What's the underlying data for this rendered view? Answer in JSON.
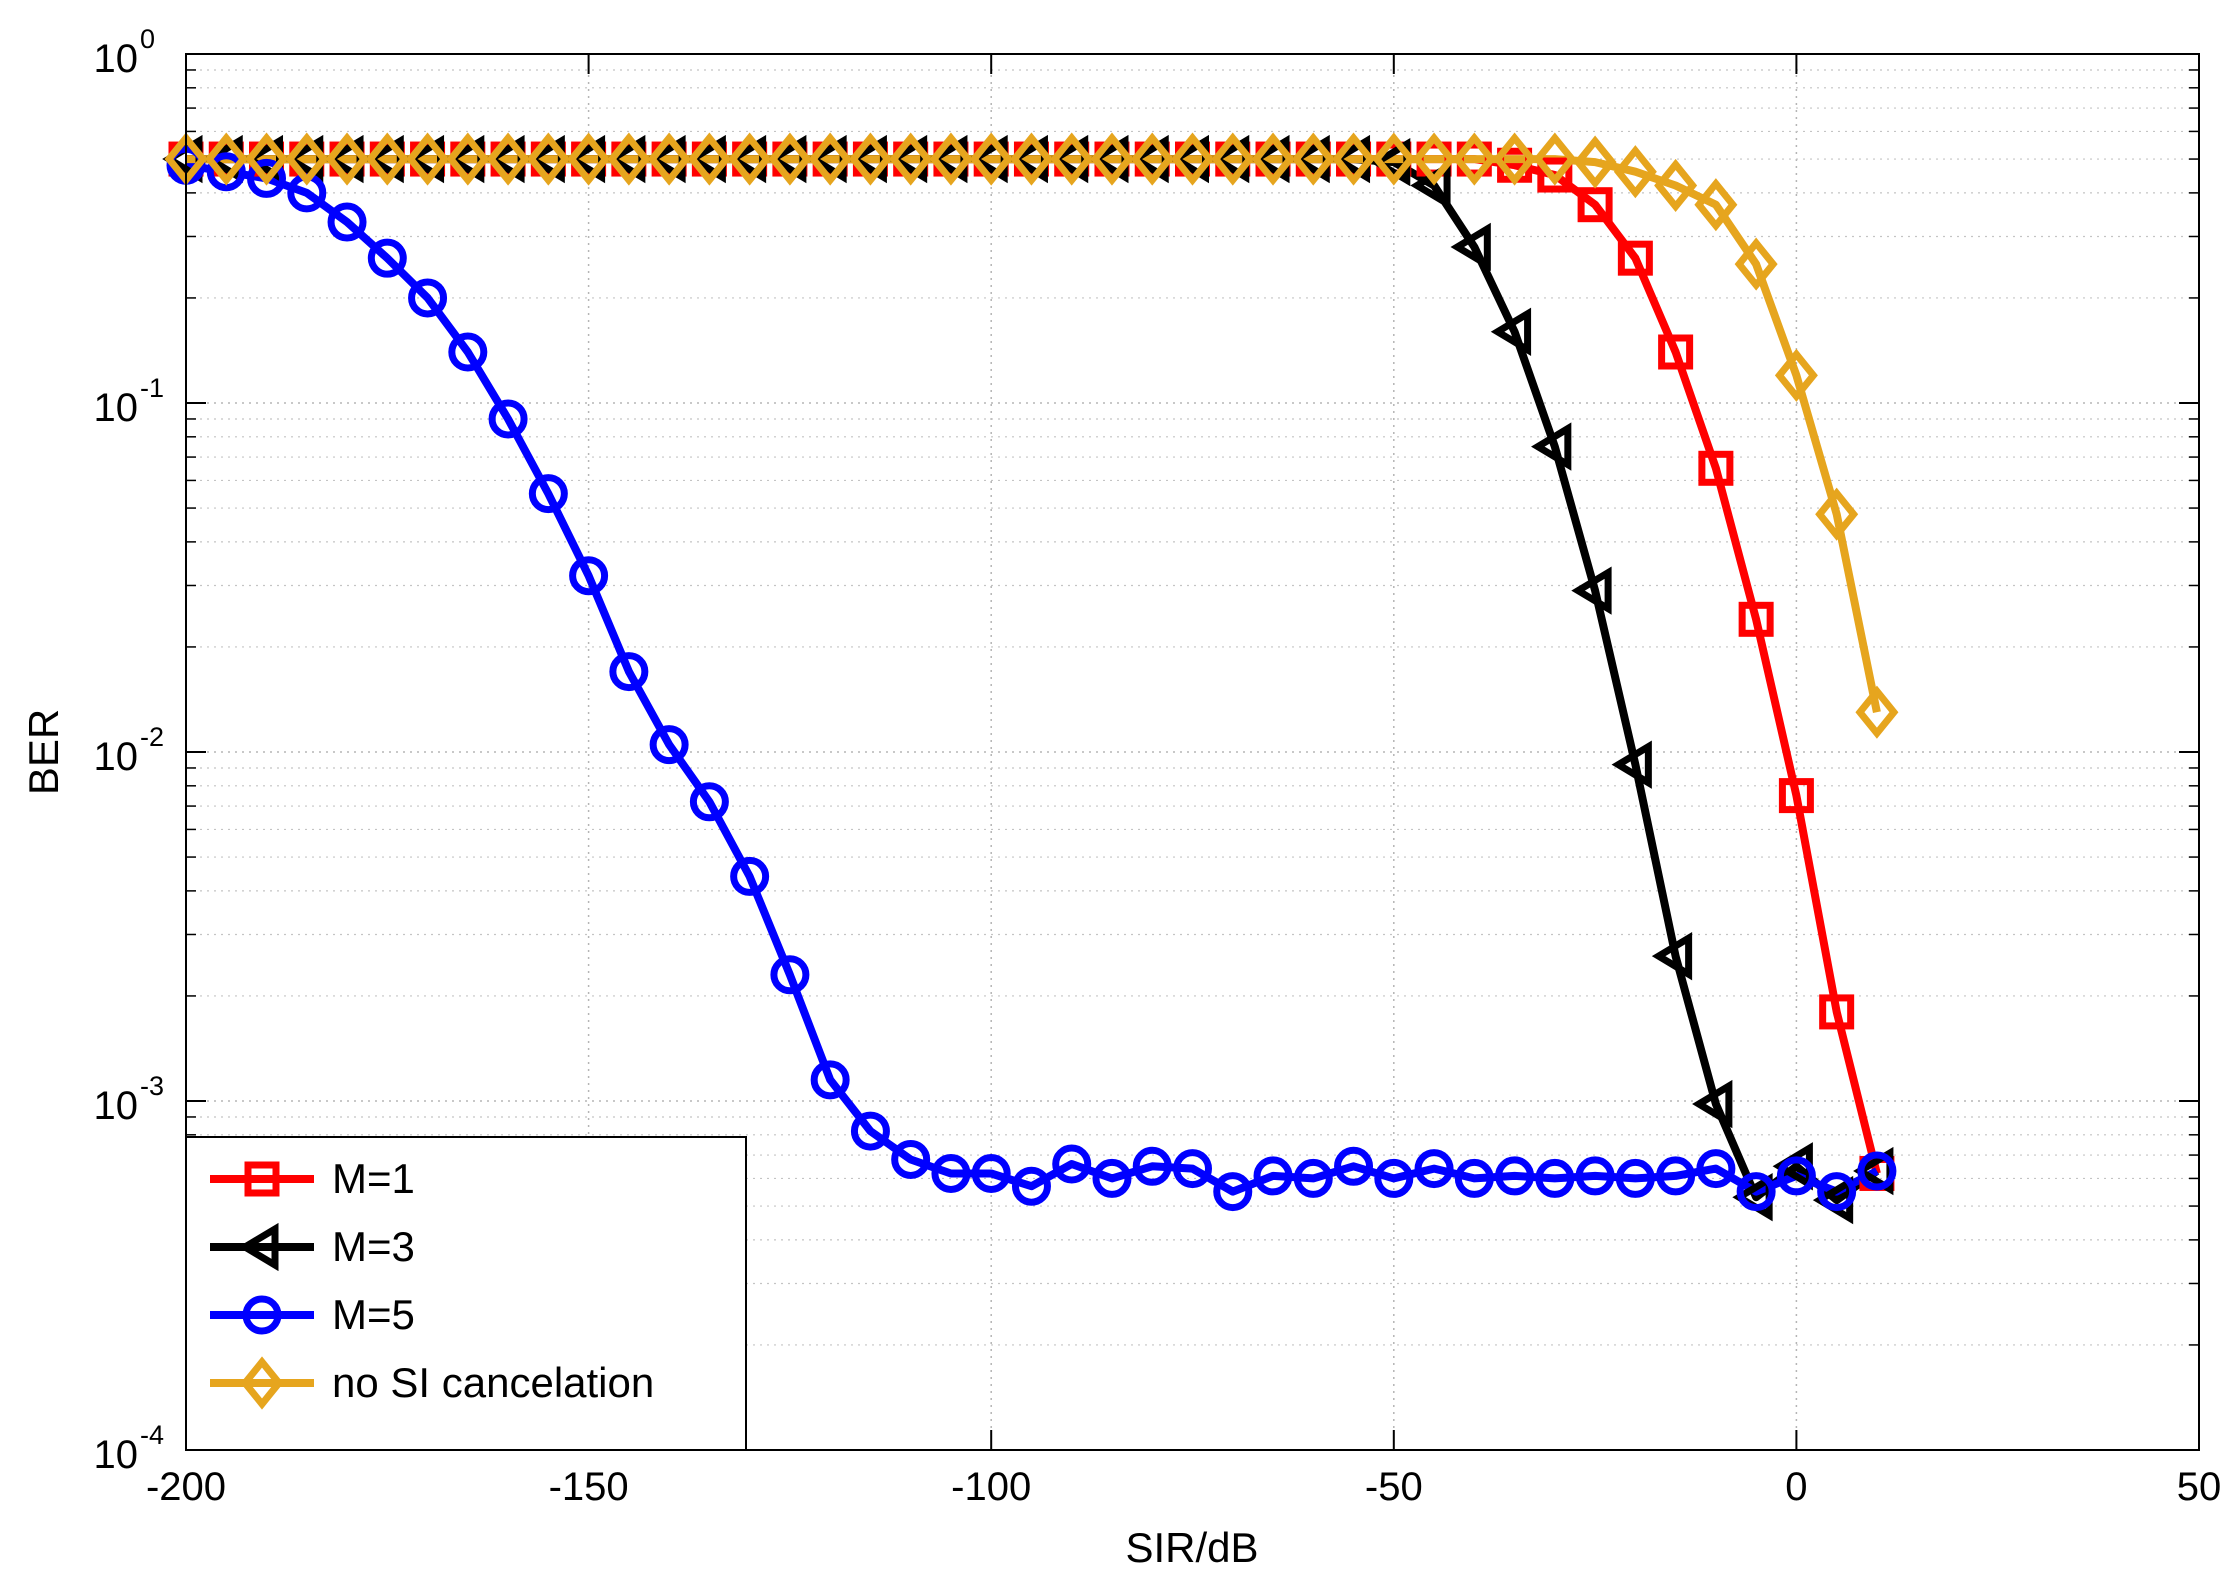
{
  "chart_data": {
    "type": "line",
    "title": "",
    "xlabel": "SIR/dB",
    "ylabel": "BER",
    "yscale": "log",
    "xlim": [
      -200,
      50
    ],
    "ylim": [
      0.0001,
      1
    ],
    "grid": true,
    "legend_position": "bottom-left",
    "x_ticks": [
      -200,
      -150,
      -100,
      -50,
      0,
      50
    ],
    "x_tick_labels": [
      "-200",
      "-150",
      "-100",
      "-50",
      "0",
      "50"
    ],
    "y_ticks": [
      1,
      0.1,
      0.01,
      0.001,
      0.0001
    ],
    "y_tick_base": "10",
    "y_tick_exponents": [
      "0",
      "-1",
      "-2",
      "-3",
      "-4"
    ],
    "series": [
      {
        "name": "M=1",
        "color": "#ff0000",
        "marker": "square",
        "x": [
          -200,
          -195,
          -190,
          -185,
          -180,
          -175,
          -170,
          -165,
          -160,
          -155,
          -150,
          -145,
          -140,
          -135,
          -130,
          -125,
          -120,
          -115,
          -110,
          -105,
          -100,
          -95,
          -90,
          -85,
          -80,
          -75,
          -70,
          -65,
          -60,
          -55,
          -50,
          -45,
          -40,
          -35,
          -30,
          -25,
          -20,
          -15,
          -10,
          -5,
          0,
          5,
          10
        ],
        "values": [
          0.5,
          0.5,
          0.5,
          0.5,
          0.5,
          0.5,
          0.5,
          0.5,
          0.5,
          0.5,
          0.5,
          0.5,
          0.5,
          0.5,
          0.5,
          0.5,
          0.5,
          0.5,
          0.5,
          0.5,
          0.5,
          0.5,
          0.5,
          0.5,
          0.5,
          0.5,
          0.5,
          0.5,
          0.5,
          0.5,
          0.5,
          0.5,
          0.5,
          0.48,
          0.45,
          0.37,
          0.26,
          0.14,
          0.065,
          0.024,
          0.0075,
          0.0018,
          0.00062
        ]
      },
      {
        "name": "M=3",
        "color": "#000000",
        "marker": "triangle-left",
        "x": [
          -200,
          -195,
          -190,
          -185,
          -180,
          -175,
          -170,
          -165,
          -160,
          -155,
          -150,
          -145,
          -140,
          -135,
          -130,
          -125,
          -120,
          -115,
          -110,
          -105,
          -100,
          -95,
          -90,
          -85,
          -80,
          -75,
          -70,
          -65,
          -60,
          -55,
          -50,
          -45,
          -40,
          -35,
          -30,
          -25,
          -20,
          -15,
          -10,
          -5,
          0,
          5,
          10
        ],
        "values": [
          0.5,
          0.5,
          0.5,
          0.5,
          0.5,
          0.5,
          0.5,
          0.5,
          0.5,
          0.5,
          0.5,
          0.5,
          0.5,
          0.5,
          0.5,
          0.5,
          0.5,
          0.5,
          0.5,
          0.5,
          0.5,
          0.5,
          0.5,
          0.5,
          0.5,
          0.5,
          0.5,
          0.5,
          0.5,
          0.5,
          0.49,
          0.42,
          0.28,
          0.16,
          0.075,
          0.029,
          0.0092,
          0.0026,
          0.00098,
          0.00053,
          0.00065,
          0.00052,
          0.00063
        ]
      },
      {
        "name": "M=5",
        "color": "#0000ff",
        "marker": "circle",
        "x": [
          -200,
          -195,
          -190,
          -185,
          -180,
          -175,
          -170,
          -165,
          -160,
          -155,
          -150,
          -145,
          -140,
          -135,
          -130,
          -125,
          -120,
          -115,
          -110,
          -105,
          -100,
          -95,
          -90,
          -85,
          -80,
          -75,
          -70,
          -65,
          -60,
          -55,
          -50,
          -45,
          -40,
          -35,
          -30,
          -25,
          -20,
          -15,
          -10,
          -5,
          0,
          5,
          10
        ],
        "values": [
          0.48,
          0.46,
          0.44,
          0.4,
          0.33,
          0.26,
          0.2,
          0.14,
          0.09,
          0.055,
          0.032,
          0.017,
          0.0105,
          0.0072,
          0.0044,
          0.0023,
          0.00115,
          0.00082,
          0.00068,
          0.00062,
          0.00062,
          0.00057,
          0.00066,
          0.0006,
          0.00065,
          0.00064,
          0.00055,
          0.00061,
          0.0006,
          0.00065,
          0.0006,
          0.00064,
          0.0006,
          0.00061,
          0.0006,
          0.00061,
          0.0006,
          0.00061,
          0.00064,
          0.00055,
          0.00061,
          0.00055,
          0.00063
        ]
      },
      {
        "name": "no SI cancelation",
        "color": "#e6a51e",
        "marker": "diamond",
        "x": [
          -200,
          -195,
          -190,
          -185,
          -180,
          -175,
          -170,
          -165,
          -160,
          -155,
          -150,
          -145,
          -140,
          -135,
          -130,
          -125,
          -120,
          -115,
          -110,
          -105,
          -100,
          -95,
          -90,
          -85,
          -80,
          -75,
          -70,
          -65,
          -60,
          -55,
          -50,
          -45,
          -40,
          -35,
          -30,
          -25,
          -20,
          -15,
          -10,
          -5,
          0,
          5,
          10
        ],
        "values": [
          0.5,
          0.5,
          0.5,
          0.5,
          0.5,
          0.5,
          0.5,
          0.5,
          0.5,
          0.5,
          0.5,
          0.5,
          0.5,
          0.5,
          0.5,
          0.5,
          0.5,
          0.5,
          0.5,
          0.5,
          0.5,
          0.5,
          0.5,
          0.5,
          0.5,
          0.5,
          0.5,
          0.5,
          0.5,
          0.5,
          0.5,
          0.5,
          0.5,
          0.5,
          0.5,
          0.49,
          0.46,
          0.42,
          0.37,
          0.25,
          0.12,
          0.048,
          0.013
        ]
      }
    ]
  }
}
